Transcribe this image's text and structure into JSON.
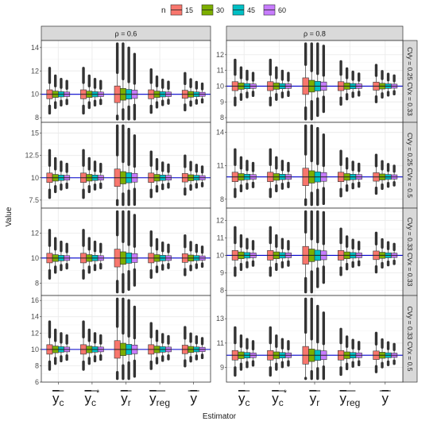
{
  "chart_data": {
    "type": "boxplot",
    "legend": {
      "title": "n",
      "position": "top",
      "items": [
        {
          "label": "15",
          "color": "#F8766D"
        },
        {
          "label": "30",
          "color": "#7CAE00"
        },
        {
          "label": "45",
          "color": "#00BFC4"
        },
        {
          "label": "60",
          "color": "#C77CFF"
        }
      ]
    },
    "xlabel": "Estimator",
    "ylabel": "Value",
    "categories": [
      "y_c",
      "y_c*",
      "y_r",
      "y_reg",
      "y"
    ],
    "col_strips": [
      "ρ = 0.6",
      "ρ = 0.8"
    ],
    "row_strips": [
      "CVy = 0.25  CVx = 0.33",
      "CVy = 0.25  CVx = 0.5",
      "CVy = 0.33  CVx = 0.33",
      "CVy = 0.33  CVx = 0.5"
    ],
    "reference_line": 10,
    "grid": true,
    "panels": [
      {
        "row": 0,
        "col": 0,
        "ylim": [
          7.6,
          14.6
        ],
        "yticks": [
          8,
          10,
          12,
          14
        ]
      },
      {
        "row": 0,
        "col": 1,
        "ylim": [
          7.7,
          12.9
        ],
        "yticks": [
          8,
          9,
          10,
          11,
          12
        ]
      },
      {
        "row": 1,
        "col": 0,
        "ylim": [
          6.6,
          16.2
        ],
        "yticks": [
          7.5,
          10.0,
          12.5,
          15.0
        ]
      },
      {
        "row": 1,
        "col": 1,
        "ylim": [
          7.2,
          14.9
        ],
        "yticks": [
          8,
          11,
          14
        ]
      },
      {
        "row": 2,
        "col": 0,
        "ylim": [
          7.0,
          14.0
        ],
        "yticks": [
          8,
          10,
          12
        ]
      },
      {
        "row": 2,
        "col": 1,
        "ylim": [
          7.7,
          12.7
        ],
        "yticks": [
          8,
          9,
          10,
          11,
          12
        ]
      },
      {
        "row": 3,
        "col": 0,
        "ylim": [
          6.0,
          16.6
        ],
        "yticks": [
          6,
          8,
          10,
          12,
          14,
          16
        ]
      },
      {
        "row": 3,
        "col": 1,
        "ylim": [
          7.8,
          14.9
        ],
        "yticks": [
          9,
          11,
          13
        ]
      }
    ]
  }
}
